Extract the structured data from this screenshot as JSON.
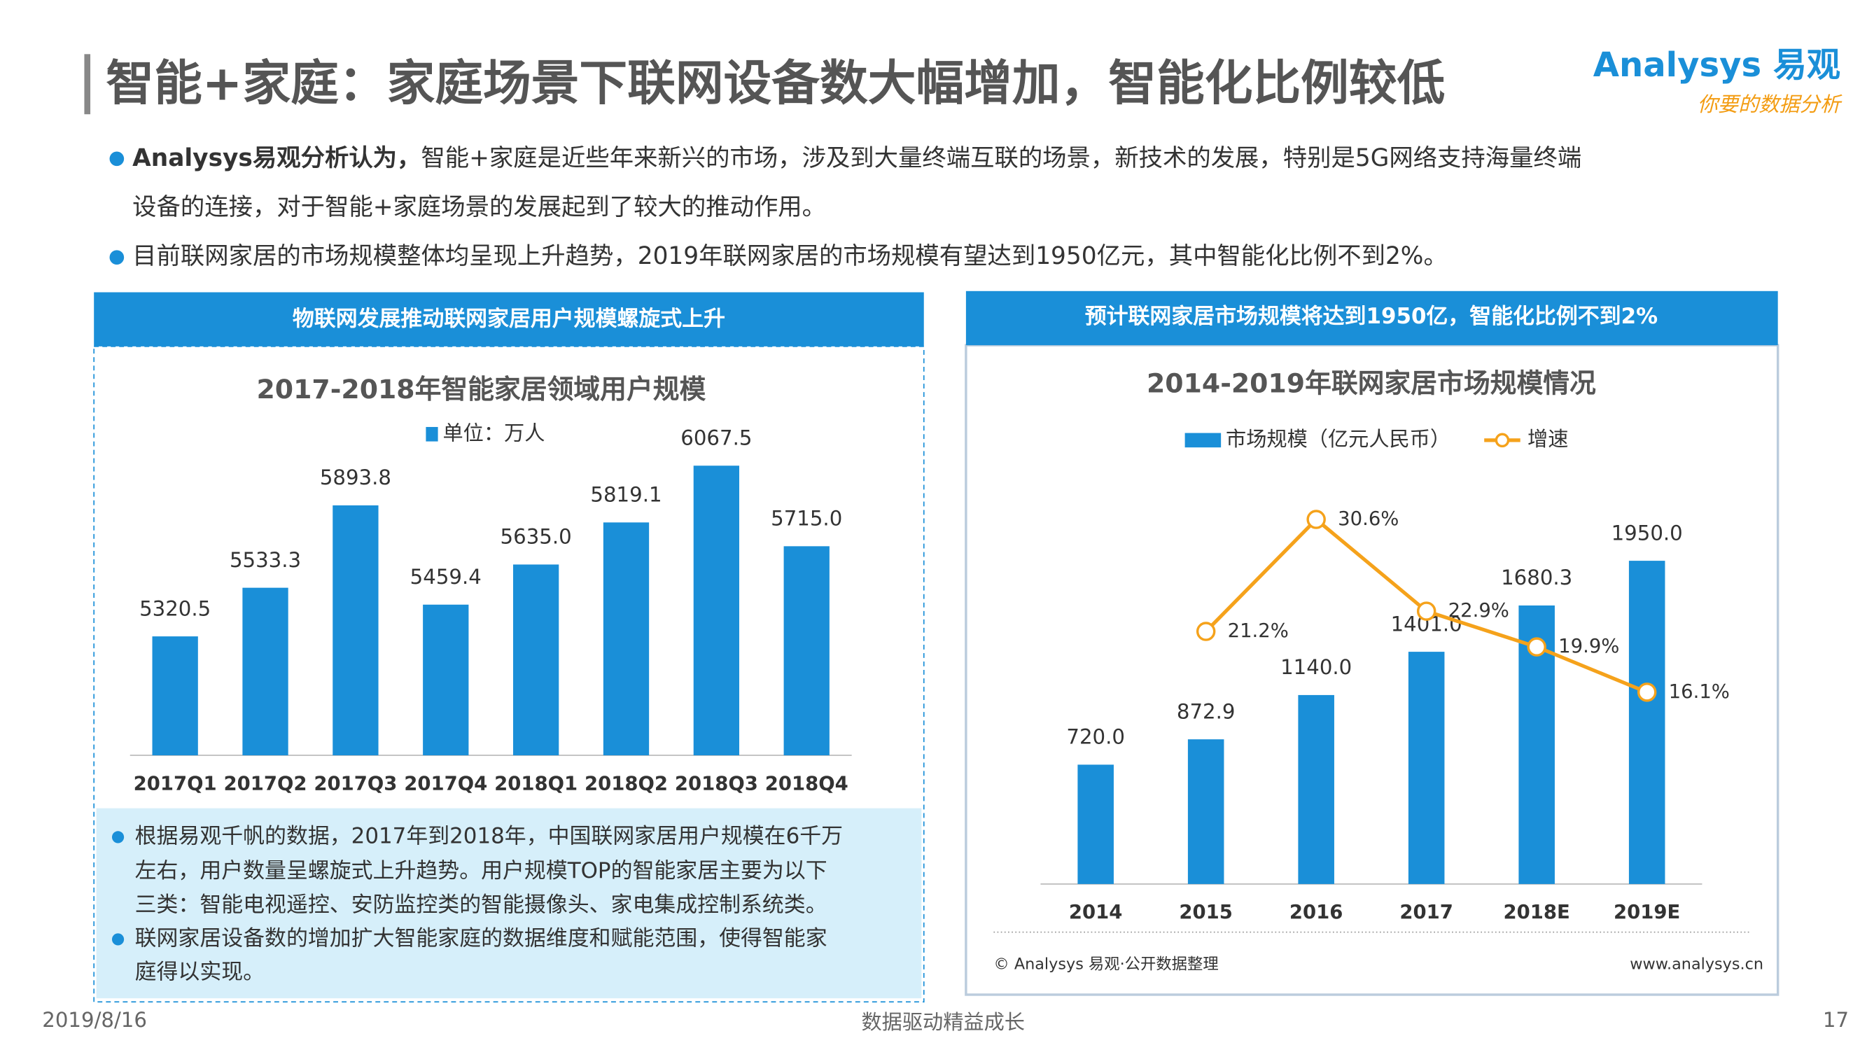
{
  "header": {
    "title": "智能+家庭：家庭场景下联网设备数大幅增加，智能化比例较低",
    "logo": "Analysys 易观",
    "slogan": "你要的数据分析"
  },
  "bullets": [
    {
      "bold": "Analysys易观分析认为，",
      "lines": [
        "智能+家庭是近些年来新兴的市场，涉及到大量终端互联的场景，新技术的发展，特别是5G网络支持海量终端",
        "设备的连接，对于智能+家庭场景的发展起到了较大的推动作用。"
      ]
    },
    {
      "lines": [
        "目前联网家居的市场规模整体均呈现上升趋势，2019年联网家居的市场规模有望达到1950亿元，其中智能化比例不到2%。"
      ]
    }
  ],
  "panels": [
    {
      "header": "物联网发展推动联网家居用户规模螺旋式上升",
      "notes": [
        [
          "根据易观千帆的数据，2017年到2018年，中国联网家居用户规模在6千万",
          "左右，用户数量呈螺旋式上升趋势。用户规模TOP的智能家居主要为以下",
          "三类：智能电视遥控、安防监控类的智能摄像头、家电集成控制系统类。"
        ],
        [
          "联网家居设备数的增加扩大智能家庭的数据维度和赋能范围，使得智能家",
          "庭得以实现。"
        ]
      ]
    },
    {
      "header": "预计联网家居市场规模将达到1950亿，智能化比例不到2%",
      "source": "© Analysys 易观·公开数据整理",
      "site": "www.analysys.cn"
    }
  ],
  "chart_data": [
    {
      "type": "bar",
      "title": "2017-2018年智能家居领域用户规模",
      "categories": [
        "2017Q1",
        "2017Q2",
        "2017Q3",
        "2017Q4",
        "2018Q1",
        "2018Q2",
        "2018Q3",
        "2018Q4"
      ],
      "series": [
        {
          "name": "单位：万人",
          "color": "#1a8fd8",
          "values": [
            5320.5,
            5533.3,
            5893.8,
            5459.4,
            5635.0,
            5819.1,
            6067.5,
            5715.0
          ],
          "value_labels": [
            "5320.5",
            "5533.3",
            "5893.8",
            "5459.4",
            "5635.0",
            "5819.1",
            "6067.5",
            "5715.0"
          ]
        }
      ],
      "ylim": [
        4800,
        6200
      ]
    },
    {
      "type": "bar_line",
      "title": "2014-2019年联网家居市场规模情况",
      "categories": [
        "2014",
        "2015",
        "2016",
        "2017",
        "2018E",
        "2019E"
      ],
      "series": [
        {
          "name": "市场规模（亿元人民币）",
          "color": "#1a8fd8",
          "values": [
            720.0,
            872.9,
            1140.0,
            1401.0,
            1680.3,
            1950.0
          ],
          "value_labels": [
            "720.0",
            "872.9",
            "1140.0",
            "1401.0",
            "1680.3",
            "1950.0"
          ]
        },
        {
          "name": "增速",
          "color": "#f5a21b",
          "axis": "y2",
          "values": [
            null,
            21.2,
            30.6,
            22.9,
            19.9,
            16.1
          ],
          "value_labels": [
            null,
            "21.2%",
            "30.6%",
            "22.9%",
            "19.9%",
            "16.1%"
          ]
        }
      ],
      "ylim": [
        0,
        2300
      ],
      "y2lim": [
        0,
        32
      ]
    }
  ],
  "footer": {
    "date": "2019/8/16",
    "motto": "数据驱动精益成长",
    "page": "17"
  }
}
